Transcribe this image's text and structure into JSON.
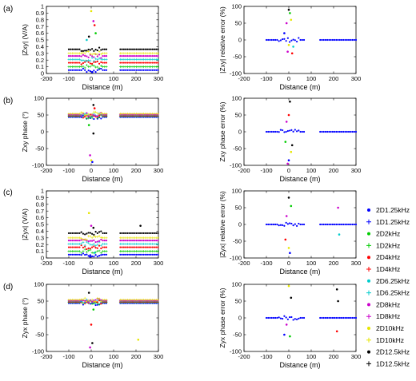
{
  "panel_letters": [
    "(a)",
    "(b)",
    "(c)",
    "(d)"
  ],
  "legend": {
    "entries": [
      {
        "label": "2D1.25kHz",
        "marker": "dot",
        "color": "#0000ff"
      },
      {
        "label": "1D1.25kHz",
        "marker": "plus",
        "color": "#0000ff"
      },
      {
        "label": "2D2kHz",
        "marker": "dot",
        "color": "#00cc00"
      },
      {
        "label": "1D2kHz",
        "marker": "plus",
        "color": "#00cc00"
      },
      {
        "label": "2D4kHz",
        "marker": "dot",
        "color": "#ff0000"
      },
      {
        "label": "1D4kHz",
        "marker": "plus",
        "color": "#ff0000"
      },
      {
        "label": "2D6.25kHz",
        "marker": "dot",
        "color": "#00cccc"
      },
      {
        "label": "1D6.25kHz",
        "marker": "plus",
        "color": "#00cccc"
      },
      {
        "label": "2D8kHz",
        "marker": "dot",
        "color": "#cc00cc"
      },
      {
        "label": "1D8kHz",
        "marker": "plus",
        "color": "#cc00cc"
      },
      {
        "label": "2D10kHz",
        "marker": "dot",
        "color": "#e6e600"
      },
      {
        "label": "1D10kHz",
        "marker": "plus",
        "color": "#e6e600"
      },
      {
        "label": "2D12.5kHz",
        "marker": "dot",
        "color": "#000000"
      },
      {
        "label": "1D12.5kHz",
        "marker": "plus",
        "color": "#000000"
      }
    ]
  },
  "chart_data": [
    {
      "panel": "(a)",
      "type": "scatter",
      "xlabel": "Distance (m)",
      "ylabel": "|Zxy| (V/A)",
      "xlim": [
        -200,
        300
      ],
      "ylim": [
        0,
        1
      ],
      "xticks": [
        "-200",
        "-100",
        "0",
        "100",
        "200",
        "300"
      ],
      "yticks": [
        "0",
        "0.1",
        "0.2",
        "0.3",
        "0.4",
        "0.5",
        "0.6",
        "0.7",
        "0.8",
        "0.9",
        "1"
      ],
      "segments": [
        [
          -100,
          70
        ],
        [
          130,
          300
        ]
      ],
      "levels": [
        0.05,
        0.1,
        0.16,
        0.21,
        0.26,
        0.3,
        0.36
      ],
      "outliers": [
        [
          -10,
          0.55,
          "#000000"
        ],
        [
          0,
          0.93,
          "#e6e600"
        ],
        [
          10,
          0.78,
          "#cc00cc"
        ],
        [
          15,
          0.72,
          "#ff0000"
        ],
        [
          20,
          0.6,
          "#00cc00"
        ],
        [
          -20,
          0.5,
          "#00cccc"
        ],
        [
          5,
          0.02,
          "#0000ff"
        ]
      ]
    },
    {
      "panel": "(a)",
      "type": "scatter",
      "xlabel": "Distance (m)",
      "ylabel": "|Zxy| relative error (%)",
      "xlim": [
        -200,
        300
      ],
      "ylim": [
        -100,
        100
      ],
      "xticks": [
        "-200",
        "-100",
        "0",
        "100",
        "200",
        "300"
      ],
      "yticks": [
        "-100",
        "-50",
        "0",
        "50",
        "100"
      ],
      "segments": [
        [
          -100,
          70
        ],
        [
          140,
          300
        ]
      ],
      "levels": [
        0
      ],
      "outliers": [
        [
          0,
          90,
          "#000000"
        ],
        [
          5,
          80,
          "#00cc00"
        ],
        [
          -10,
          50,
          "#cc00cc"
        ],
        [
          10,
          60,
          "#e6e600"
        ],
        [
          -20,
          20,
          "#0000ff"
        ],
        [
          20,
          -20,
          "#00cccc"
        ],
        [
          -5,
          -35,
          "#cc00cc"
        ],
        [
          15,
          -40,
          "#ff0000"
        ],
        [
          0,
          -15,
          "#e6e600"
        ]
      ]
    },
    {
      "panel": "(b)",
      "type": "scatter",
      "xlabel": "Distance (m)",
      "ylabel": "Zxy phase (°)",
      "xlim": [
        -200,
        300
      ],
      "ylim": [
        -100,
        100
      ],
      "xticks": [
        "-200",
        "-100",
        "0",
        "100",
        "200",
        "300"
      ],
      "yticks": [
        "-100",
        "-50",
        "0",
        "50",
        "100"
      ],
      "segments": [
        [
          -100,
          70
        ],
        [
          130,
          300
        ]
      ],
      "levels": [
        44,
        46,
        48,
        50,
        52,
        54
      ],
      "outliers": [
        [
          10,
          80,
          "#000000"
        ],
        [
          -5,
          -70,
          "#cc00cc"
        ],
        [
          5,
          -90,
          "#0000ff"
        ],
        [
          0,
          -85,
          "#e6e600"
        ],
        [
          15,
          70,
          "#ff0000"
        ],
        [
          -10,
          20,
          "#00cc00"
        ],
        [
          10,
          -5,
          "#000000"
        ]
      ]
    },
    {
      "panel": "(b)",
      "type": "scatter",
      "xlabel": "Distance (m)",
      "ylabel": "Zxy phase error (%)",
      "xlim": [
        -200,
        300
      ],
      "ylim": [
        -100,
        100
      ],
      "xticks": [
        "-200",
        "-100",
        "0",
        "100",
        "200",
        "300"
      ],
      "yticks": [
        "-100",
        "-50",
        "0",
        "50",
        "100"
      ],
      "segments": [
        [
          -100,
          70
        ],
        [
          140,
          300
        ]
      ],
      "levels": [
        0
      ],
      "outliers": [
        [
          5,
          90,
          "#000000"
        ],
        [
          0,
          50,
          "#ff0000"
        ],
        [
          -10,
          30,
          "#cc00cc"
        ],
        [
          10,
          -60,
          "#e6e600"
        ],
        [
          0,
          -85,
          "#0000ff"
        ],
        [
          -15,
          -30,
          "#00cc00"
        ],
        [
          15,
          -40,
          "#000000"
        ],
        [
          -5,
          -95,
          "#cc00cc"
        ]
      ]
    },
    {
      "panel": "(c)",
      "type": "scatter",
      "xlabel": "Distance (m)",
      "ylabel": "|Zyx| (V/A)",
      "xlim": [
        -200,
        300
      ],
      "ylim": [
        0,
        1
      ],
      "xticks": [
        "-200",
        "-100",
        "0",
        "100",
        "200",
        "300"
      ],
      "yticks": [
        "0",
        "0.1",
        "0.2",
        "0.3",
        "0.4",
        "0.5",
        "0.6",
        "0.7",
        "0.8",
        "0.9",
        "1"
      ],
      "segments": [
        [
          -100,
          70
        ],
        [
          130,
          300
        ]
      ],
      "levels": [
        0.05,
        0.1,
        0.16,
        0.21,
        0.26,
        0.3,
        0.37
      ],
      "outliers": [
        [
          -10,
          0.67,
          "#e6e600"
        ],
        [
          0,
          0.48,
          "#cc00cc"
        ],
        [
          10,
          0.45,
          "#000000"
        ],
        [
          -5,
          0.02,
          "#0000ff"
        ],
        [
          220,
          0.48,
          "#000000"
        ],
        [
          15,
          0.08,
          "#00cccc"
        ]
      ]
    },
    {
      "panel": "(c)",
      "type": "scatter",
      "xlabel": "Distance (m)",
      "ylabel": "|Zyx| relative error (%)",
      "xlim": [
        -200,
        300
      ],
      "ylim": [
        -100,
        100
      ],
      "xticks": [
        "-200",
        "-100",
        "0",
        "100",
        "200",
        "300"
      ],
      "yticks": [
        "-100",
        "-50",
        "0",
        "50",
        "100"
      ],
      "segments": [
        [
          -100,
          70
        ],
        [
          140,
          300
        ]
      ],
      "levels": [
        0
      ],
      "outliers": [
        [
          0,
          80,
          "#000000"
        ],
        [
          10,
          55,
          "#00cc00"
        ],
        [
          -10,
          25,
          "#cc00cc"
        ],
        [
          5,
          -85,
          "#0000ff"
        ],
        [
          0,
          -70,
          "#e6e600"
        ],
        [
          220,
          50,
          "#cc00cc"
        ],
        [
          225,
          -30,
          "#00cccc"
        ],
        [
          -15,
          -45,
          "#ff0000"
        ]
      ]
    },
    {
      "panel": "(d)",
      "type": "scatter",
      "xlabel": "Distance (m)",
      "ylabel": "Zyx phase (°)",
      "xlim": [
        -200,
        300
      ],
      "ylim": [
        -100,
        100
      ],
      "xticks": [
        "-200",
        "-100",
        "0",
        "100",
        "200",
        "300"
      ],
      "yticks": [
        "-100",
        "-50",
        "0",
        "50",
        "100"
      ],
      "segments": [
        [
          -100,
          70
        ],
        [
          130,
          300
        ]
      ],
      "levels": [
        44,
        46,
        48,
        50,
        52,
        54
      ],
      "outliers": [
        [
          -10,
          75,
          "#000000"
        ],
        [
          0,
          -20,
          "#ff0000"
        ],
        [
          -5,
          -88,
          "#cc00cc"
        ],
        [
          5,
          -75,
          "#000000"
        ],
        [
          210,
          -65,
          "#e6e600"
        ],
        [
          10,
          25,
          "#00cc00"
        ]
      ]
    },
    {
      "panel": "(d)",
      "type": "scatter",
      "xlabel": "Distance (m)",
      "ylabel": "Zyx phase error (%)",
      "xlim": [
        -200,
        300
      ],
      "ylim": [
        -100,
        100
      ],
      "xticks": [
        "-200",
        "-100",
        "0",
        "100",
        "200",
        "300"
      ],
      "yticks": [
        "-100",
        "-50",
        "0",
        "50",
        "100"
      ],
      "segments": [
        [
          -100,
          70
        ],
        [
          140,
          300
        ]
      ],
      "levels": [
        0
      ],
      "outliers": [
        [
          0,
          95,
          "#e6e600"
        ],
        [
          10,
          60,
          "#000000"
        ],
        [
          -10,
          -20,
          "#cc00cc"
        ],
        [
          5,
          -55,
          "#00cc00"
        ],
        [
          215,
          85,
          "#000000"
        ],
        [
          220,
          50,
          "#000000"
        ],
        [
          215,
          -40,
          "#ff0000"
        ],
        [
          -20,
          -50,
          "#0000ff"
        ]
      ]
    }
  ]
}
